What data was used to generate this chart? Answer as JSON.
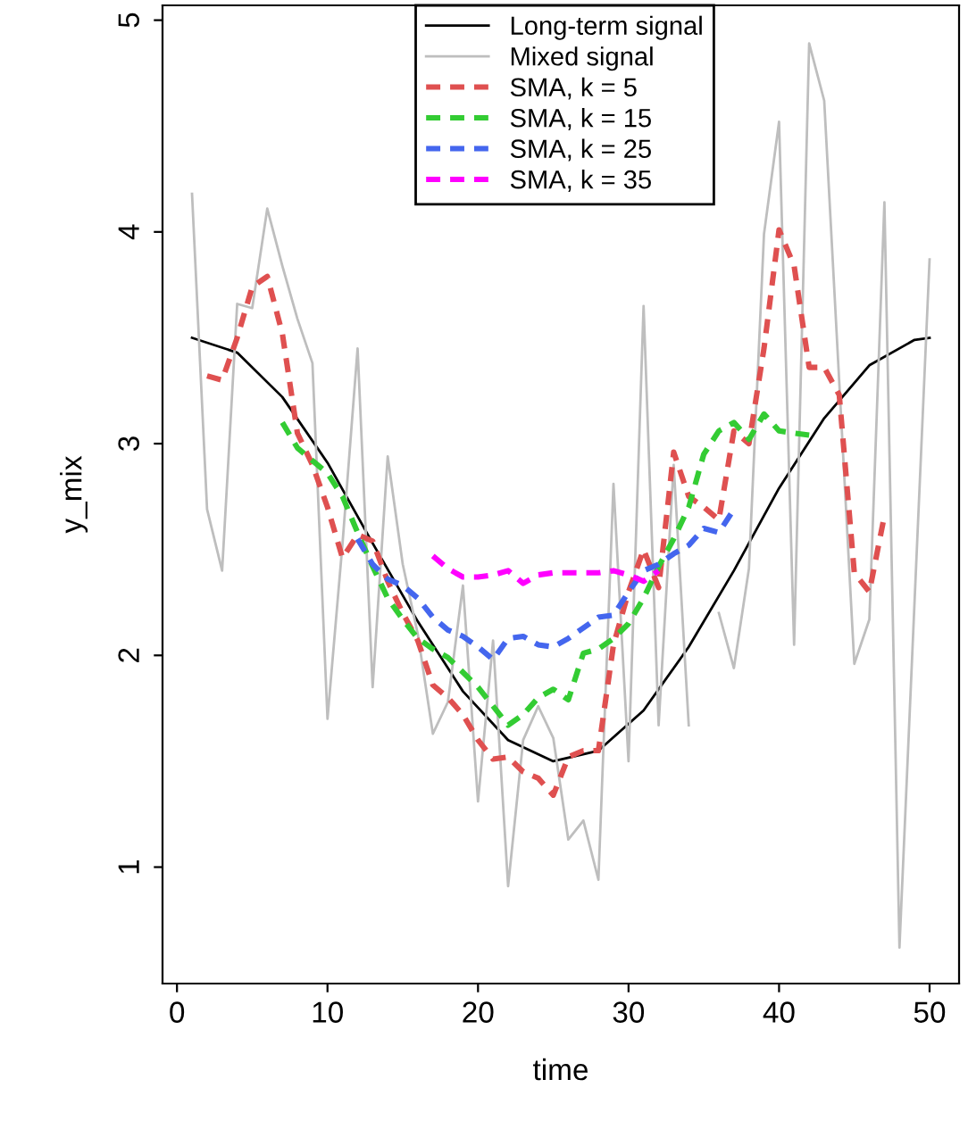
{
  "chart_data": {
    "type": "line",
    "xlabel": "time",
    "ylabel": "y_mix",
    "xlim": [
      -0.96,
      51.96
    ],
    "ylim": [
      0.45,
      5.07
    ],
    "xticks": [
      0,
      10,
      20,
      30,
      40,
      50
    ],
    "yticks": [
      1,
      2,
      3,
      4,
      5
    ],
    "grid": false,
    "legend": "top",
    "marker": "none",
    "series": [
      {
        "name": "Long-term signal",
        "color": "#000000",
        "line_style": "solid",
        "x": [
          1,
          4,
          7,
          10,
          13,
          16,
          19,
          22,
          25,
          28,
          31,
          34,
          37,
          40,
          43,
          46,
          49,
          50
        ],
        "values": [
          3.5,
          3.43,
          3.22,
          2.91,
          2.53,
          2.16,
          1.83,
          1.6,
          1.5,
          1.55,
          1.74,
          2.04,
          2.4,
          2.79,
          3.12,
          3.37,
          3.49,
          3.5
        ]
      },
      {
        "name": "Mixed signal",
        "color": "#bebebe",
        "line_style": "solid",
        "x": [
          1,
          2,
          3,
          4,
          5,
          6,
          7,
          8,
          9,
          10,
          11,
          12,
          13,
          14,
          15,
          16,
          17,
          18,
          19,
          20,
          21,
          22,
          23,
          24,
          25,
          26,
          27,
          28,
          29,
          30,
          31,
          32,
          33,
          34,
          35,
          36,
          37,
          38,
          39,
          40,
          41,
          42,
          43,
          44,
          45,
          46,
          47,
          48,
          49,
          50
        ],
        "values": [
          4.18,
          2.69,
          2.4,
          3.66,
          3.64,
          4.11,
          3.84,
          3.59,
          3.38,
          1.7,
          2.53,
          3.45,
          1.85,
          2.94,
          2.43,
          2.1,
          1.63,
          1.78,
          2.33,
          1.31,
          2.07,
          0.91,
          1.6,
          1.76,
          1.61,
          1.13,
          1.22,
          0.94,
          2.81,
          1.5,
          3.65,
          1.67,
          2.9,
          1.67,
          null,
          2.2,
          1.94,
          2.41,
          3.99,
          4.52,
          2.05,
          4.89,
          4.62,
          3.29,
          1.96,
          2.17,
          4.14,
          0.62,
          2.25,
          3.87
        ]
      },
      {
        "name": "SMA, k = 5",
        "color": "#df5050",
        "line_style": "dashed",
        "x": [
          2,
          3,
          4,
          5,
          6,
          7,
          8,
          9,
          10,
          11,
          12,
          13,
          14,
          15,
          16,
          17,
          18,
          19,
          20,
          21,
          22,
          23,
          24,
          25,
          26,
          27,
          28,
          29,
          30,
          31,
          32,
          33,
          34,
          35,
          36,
          37,
          38,
          39,
          40,
          41,
          42,
          43,
          44,
          45,
          46,
          47
        ],
        "values": [
          3.32,
          3.3,
          3.5,
          3.74,
          3.79,
          3.52,
          3.05,
          2.9,
          2.7,
          2.46,
          2.57,
          2.54,
          2.35,
          2.2,
          2.07,
          1.86,
          1.8,
          1.72,
          1.6,
          1.51,
          1.52,
          1.45,
          1.42,
          1.34,
          1.52,
          1.55,
          1.55,
          2.05,
          2.3,
          2.5,
          2.32,
          2.96,
          2.75,
          2.7,
          2.64,
          3.06,
          3.0,
          3.45,
          4.01,
          3.84,
          3.36,
          3.36,
          3.23,
          2.39,
          2.3,
          2.66
        ]
      },
      {
        "name": "SMA, k = 15",
        "color": "#33cc33",
        "line_style": "dashed",
        "x": [
          7,
          8,
          9,
          10,
          11,
          12,
          13,
          14,
          15,
          16,
          17,
          18,
          19,
          20,
          21,
          22,
          23,
          24,
          25,
          26,
          27,
          28,
          29,
          30,
          31,
          32,
          33,
          34,
          35,
          36,
          37,
          38,
          39,
          40,
          41,
          42
        ],
        "values": [
          3.1,
          2.98,
          2.92,
          2.86,
          2.75,
          2.58,
          2.42,
          2.27,
          2.17,
          2.08,
          2.03,
          1.99,
          1.92,
          1.85,
          1.76,
          1.67,
          1.72,
          1.8,
          1.84,
          1.79,
          2.01,
          2.03,
          2.08,
          2.15,
          2.27,
          2.42,
          2.55,
          2.7,
          2.95,
          3.06,
          3.1,
          3.02,
          3.14,
          3.06,
          3.05,
          3.04
        ]
      },
      {
        "name": "SMA, k = 25",
        "color": "#4466ee",
        "line_style": "dashed",
        "x": [
          12,
          13,
          14,
          15,
          16,
          17,
          18,
          19,
          20,
          21,
          22,
          23,
          24,
          25,
          26,
          27,
          28,
          29,
          30,
          31,
          32,
          33,
          34,
          35,
          36,
          37
        ],
        "values": [
          2.55,
          2.43,
          2.36,
          2.33,
          2.27,
          2.18,
          2.12,
          2.09,
          2.04,
          1.98,
          2.08,
          2.09,
          2.05,
          2.04,
          2.08,
          2.13,
          2.18,
          2.19,
          2.3,
          2.4,
          2.43,
          2.48,
          2.52,
          2.6,
          2.58,
          2.69
        ]
      },
      {
        "name": "SMA, k = 35",
        "color": "#ff00ff",
        "line_style": "dashed",
        "x": [
          17,
          18,
          19,
          20,
          21,
          22,
          23,
          24,
          25,
          26,
          27,
          28,
          29,
          30,
          31,
          32
        ],
        "values": [
          2.47,
          2.41,
          2.37,
          2.37,
          2.38,
          2.4,
          2.34,
          2.38,
          2.39,
          2.39,
          2.39,
          2.39,
          2.4,
          2.38,
          2.35,
          2.4
        ]
      }
    ]
  }
}
